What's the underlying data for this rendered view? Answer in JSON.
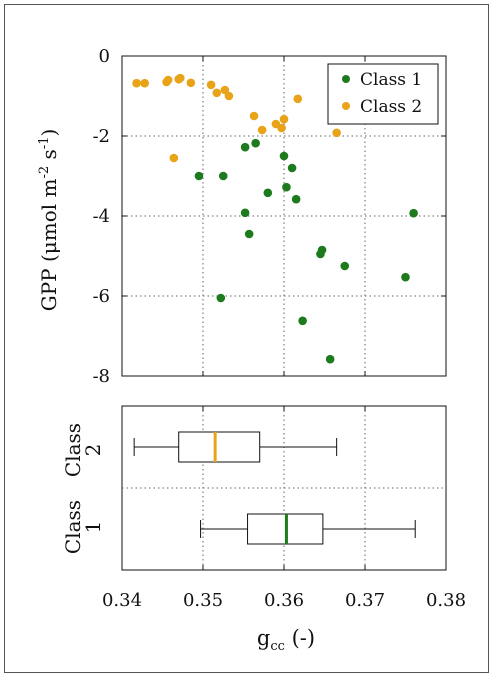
{
  "chart_data": [
    {
      "type": "scatter",
      "ylabel": "GPP (μmol m-2 s-1)",
      "ylabel_parts": {
        "base": "GPP (μmol m",
        "exp1": "-2",
        "mid": " s",
        "exp2": "-1",
        "end": ")"
      },
      "xlim": [
        0.34,
        0.38
      ],
      "ylim": [
        -8,
        0
      ],
      "y_ticks": [
        "0",
        "-2",
        "-4",
        "-6",
        "-8"
      ],
      "grid": true,
      "legend_position": "top-right",
      "series": [
        {
          "name": "Class 1",
          "color": "#1d7a1d",
          "points": [
            [
              0.3495,
              -3.0
            ],
            [
              0.3525,
              -3.0
            ],
            [
              0.3522,
              -6.05
            ],
            [
              0.3552,
              -2.28
            ],
            [
              0.3565,
              -2.18
            ],
            [
              0.3552,
              -3.92
            ],
            [
              0.3557,
              -4.45
            ],
            [
              0.358,
              -3.42
            ],
            [
              0.36,
              -2.5
            ],
            [
              0.3603,
              -3.28
            ],
            [
              0.361,
              -2.8
            ],
            [
              0.3615,
              -3.58
            ],
            [
              0.3623,
              -6.62
            ],
            [
              0.3645,
              -4.95
            ],
            [
              0.3647,
              -4.85
            ],
            [
              0.3657,
              -7.58
            ],
            [
              0.3675,
              -5.25
            ],
            [
              0.375,
              -5.53
            ],
            [
              0.376,
              -3.93
            ]
          ]
        },
        {
          "name": "Class 2",
          "color": "#e8a319",
          "points": [
            [
              0.3418,
              -0.68
            ],
            [
              0.3428,
              -0.68
            ],
            [
              0.3455,
              -0.65
            ],
            [
              0.3457,
              -0.6
            ],
            [
              0.3464,
              -2.55
            ],
            [
              0.347,
              -0.58
            ],
            [
              0.3472,
              -0.55
            ],
            [
              0.3485,
              -0.67
            ],
            [
              0.351,
              -0.72
            ],
            [
              0.3517,
              -0.92
            ],
            [
              0.3527,
              -0.85
            ],
            [
              0.3532,
              -1.0
            ],
            [
              0.3563,
              -1.5
            ],
            [
              0.3573,
              -1.85
            ],
            [
              0.359,
              -1.7
            ],
            [
              0.3597,
              -1.8
            ],
            [
              0.36,
              -1.58
            ],
            [
              0.3617,
              -1.07
            ],
            [
              0.3665,
              -1.92
            ]
          ]
        }
      ]
    },
    {
      "type": "box",
      "xlabel": "gcc (-)",
      "xlabel_parts": {
        "base": "g",
        "sub": "cc",
        "end": " (-)"
      },
      "xlim": [
        0.34,
        0.38
      ],
      "x_ticks": [
        "0.34",
        "0.35",
        "0.36",
        "0.37",
        "0.38"
      ],
      "grid": true,
      "boxes": [
        {
          "label_top": "Class",
          "label_num": "2",
          "color": "#e8a319",
          "min": 0.3415,
          "q1": 0.347,
          "median": 0.3515,
          "q3": 0.357,
          "max": 0.3665
        },
        {
          "label_top": "Class",
          "label_num": "1",
          "color": "#1d7a1d",
          "min": 0.3497,
          "q1": 0.3555,
          "median": 0.3603,
          "q3": 0.3648,
          "max": 0.3762
        }
      ]
    }
  ]
}
